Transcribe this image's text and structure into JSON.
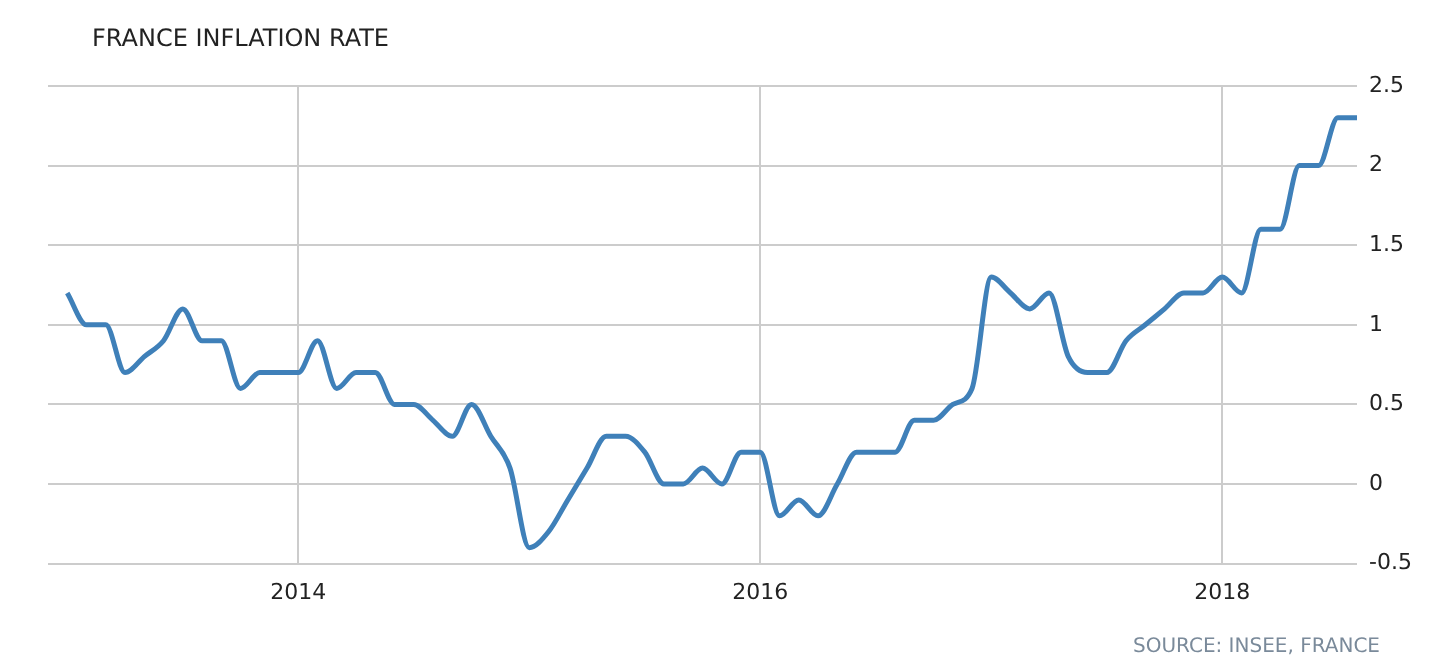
{
  "chart_data": {
    "type": "line",
    "title": "FRANCE INFLATION RATE",
    "annotations": [
      "SOURCE: INSEE, FRANCE"
    ],
    "x": [
      "2013-01",
      "2013-02",
      "2013-03",
      "2013-04",
      "2013-05",
      "2013-06",
      "2013-07",
      "2013-08",
      "2013-09",
      "2013-10",
      "2013-11",
      "2013-12",
      "2014-01",
      "2014-02",
      "2014-03",
      "2014-04",
      "2014-05",
      "2014-06",
      "2014-07",
      "2014-08",
      "2014-09",
      "2014-10",
      "2014-11",
      "2014-12",
      "2015-01",
      "2015-02",
      "2015-03",
      "2015-04",
      "2015-05",
      "2015-06",
      "2015-07",
      "2015-08",
      "2015-09",
      "2015-10",
      "2015-11",
      "2015-12",
      "2016-01",
      "2016-02",
      "2016-03",
      "2016-04",
      "2016-05",
      "2016-06",
      "2016-07",
      "2016-08",
      "2016-09",
      "2016-10",
      "2016-11",
      "2016-12",
      "2017-01",
      "2017-02",
      "2017-03",
      "2017-04",
      "2017-05",
      "2017-06",
      "2017-07",
      "2017-08",
      "2017-09",
      "2017-10",
      "2017-11",
      "2017-12",
      "2018-01",
      "2018-02",
      "2018-03",
      "2018-04",
      "2018-05",
      "2018-06",
      "2018-07",
      "2018-08"
    ],
    "series": [
      {
        "color": "#3f80b9",
        "values": [
          1.2,
          1.0,
          1.0,
          0.7,
          0.8,
          0.9,
          1.1,
          0.9,
          0.9,
          0.6,
          0.7,
          0.7,
          0.7,
          0.9,
          0.6,
          0.7,
          0.7,
          0.5,
          0.5,
          0.4,
          0.3,
          0.5,
          0.3,
          0.1,
          -0.4,
          -0.3,
          -0.1,
          0.1,
          0.3,
          0.3,
          0.2,
          0.0,
          0.0,
          0.1,
          0.0,
          0.2,
          0.2,
          -0.2,
          -0.1,
          -0.2,
          0.0,
          0.2,
          0.2,
          0.2,
          0.4,
          0.4,
          0.5,
          0.6,
          1.3,
          1.2,
          1.1,
          1.2,
          0.8,
          0.7,
          0.7,
          0.9,
          1.0,
          1.1,
          1.2,
          1.2,
          1.3,
          1.2,
          1.6,
          1.6,
          2.0,
          2.0,
          2.3,
          2.3
        ]
      }
    ],
    "xlim": [
      "2012-12",
      "2018-08"
    ],
    "xticks": [
      "2014",
      "2016",
      "2018"
    ],
    "ylim": [
      -0.5,
      2.5
    ],
    "yticks": [
      -0.5,
      0,
      0.5,
      1,
      1.5,
      2,
      2.5
    ],
    "grid": true,
    "legend": false,
    "marker": "none",
    "line_style": "solid"
  }
}
